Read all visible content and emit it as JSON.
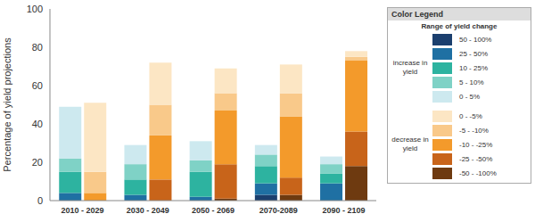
{
  "chart_data": {
    "type": "bar",
    "stacked": true,
    "grid": false,
    "y_label": "Percentage of yield projections",
    "categories": [
      "2010 - 2029",
      "2030 - 2049",
      "2050 - 2069",
      "2070-2089",
      "2090 - 2109"
    ],
    "ylim": [
      0,
      100
    ],
    "yticks": [
      0,
      20,
      40,
      60,
      80,
      100
    ],
    "legend_heading": "Color Legend",
    "legend_title": "Range of yield change",
    "groups": [
      {
        "name": "increase in yield",
        "series": [
          {
            "name": "50 - 100%",
            "color": "#1b3f6e",
            "values": [
              0,
              0,
              0,
              3,
              0
            ]
          },
          {
            "name": "25 - 50%",
            "color": "#1f70a3",
            "values": [
              4,
              3,
              2,
              6,
              9
            ]
          },
          {
            "name": "10 - 25%",
            "color": "#2db3a0",
            "values": [
              11,
              8,
              13,
              9,
              5
            ]
          },
          {
            "name": "5 - 10%",
            "color": "#7fd2c6",
            "values": [
              7,
              8,
              6,
              6,
              5
            ]
          },
          {
            "name": "0 - 5%",
            "color": "#cde9ef",
            "values": [
              27,
              10,
              10,
              5,
              4
            ]
          }
        ]
      },
      {
        "name": "decrease in yield",
        "series": [
          {
            "name": "0 - -5%",
            "color": "#fce6c4",
            "values": [
              36,
              22,
              13,
              15,
              3
            ]
          },
          {
            "name": "-5 - -10%",
            "color": "#f9c98a",
            "values": [
              11,
              16,
              9,
              12,
              2
            ]
          },
          {
            "name": "-10 - -25%",
            "color": "#f39a2b",
            "values": [
              4,
              23,
              28,
              32,
              37
            ]
          },
          {
            "name": "-25 - -50%",
            "color": "#c8641a",
            "values": [
              0,
              11,
              18,
              9,
              18
            ]
          },
          {
            "name": "-50 - -100%",
            "color": "#6e3a10",
            "values": [
              0,
              0,
              1,
              3,
              18
            ]
          }
        ]
      }
    ]
  }
}
